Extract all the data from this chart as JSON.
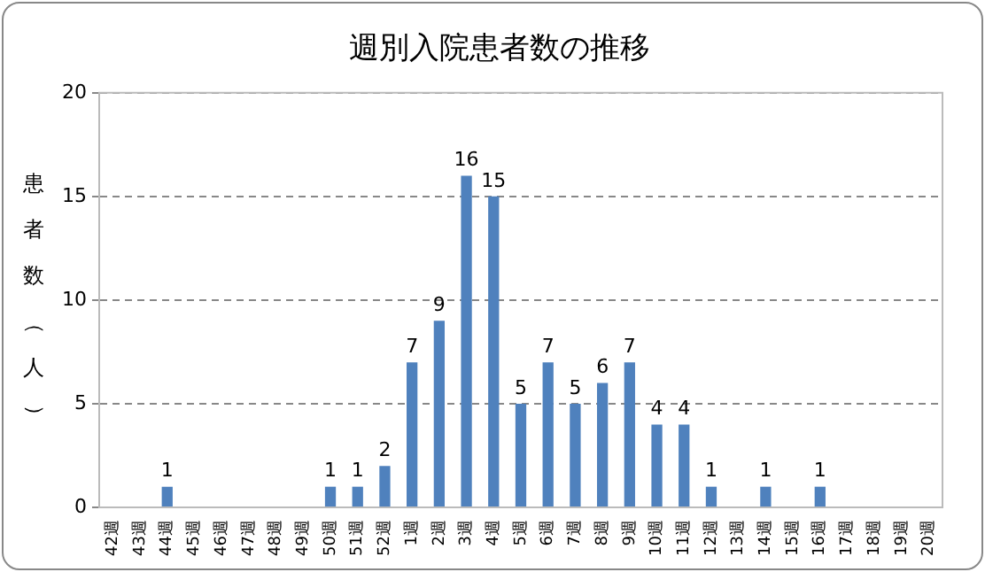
{
  "chart_data": {
    "type": "bar",
    "title": "週別入院患者数の推移",
    "ylabel": "患者数（人）",
    "categories": [
      "42週",
      "43週",
      "44週",
      "45週",
      "46週",
      "47週",
      "48週",
      "49週",
      "50週",
      "51週",
      "52週",
      "1週",
      "2週",
      "3週",
      "4週",
      "5週",
      "6週",
      "7週",
      "8週",
      "9週",
      "10週",
      "11週",
      "12週",
      "13週",
      "14週",
      "15週",
      "16週",
      "17週",
      "18週",
      "19週",
      "20週"
    ],
    "values": [
      0,
      0,
      1,
      0,
      0,
      0,
      0,
      0,
      1,
      1,
      2,
      7,
      9,
      16,
      15,
      5,
      7,
      5,
      6,
      7,
      4,
      4,
      1,
      0,
      1,
      0,
      1,
      0,
      0,
      0,
      0
    ],
    "value_labels": [
      null,
      null,
      "1",
      null,
      null,
      null,
      null,
      null,
      "1",
      "1",
      "2",
      "7",
      "9",
      "16",
      "15",
      "5",
      "7",
      "5",
      "6",
      "7",
      "4",
      "4",
      "1",
      null,
      "1",
      null,
      "1",
      null,
      null,
      null,
      null
    ],
    "color": "#4f81bd",
    "ylim": [
      0,
      20
    ],
    "yticks": [
      0,
      5,
      10,
      15,
      20
    ],
    "grid": "y",
    "legend": false
  }
}
